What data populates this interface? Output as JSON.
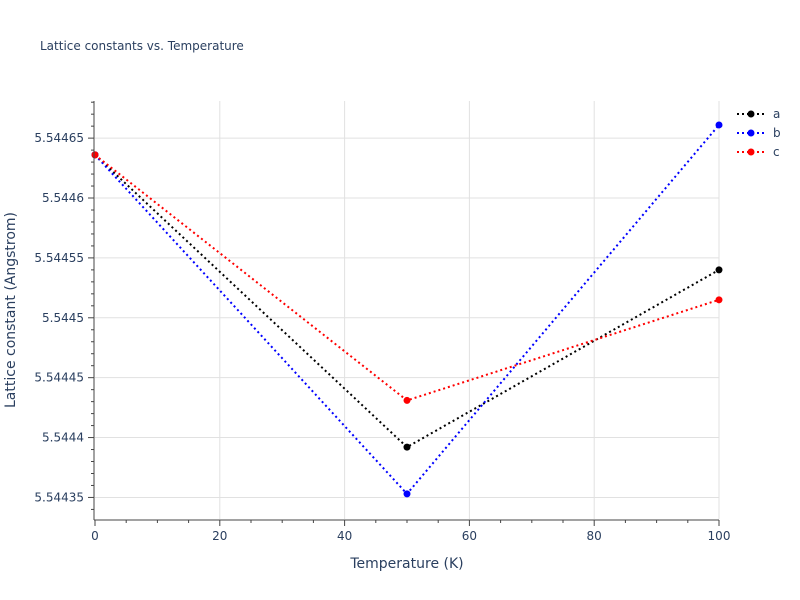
{
  "chart_data": {
    "type": "line",
    "title": "Lattice constants vs. Temperature",
    "xlabel": "Temperature (K)",
    "ylabel": "Lattice constant (Angstrom)",
    "x": [
      0,
      50,
      100
    ],
    "xlim": [
      0,
      100
    ],
    "ylim": [
      5.544332,
      5.544681
    ],
    "x_ticks": [
      0,
      20,
      40,
      60,
      80,
      100
    ],
    "y_ticks": [
      5.54435,
      5.5444,
      5.54445,
      5.5445,
      5.54455,
      5.5446,
      5.54465
    ],
    "x_tick_labels": [
      "0",
      "20",
      "40",
      "60",
      "80",
      "100"
    ],
    "y_tick_labels": [
      "5.54435",
      "5.5444",
      "5.54445",
      "5.5445",
      "5.54455",
      "5.5446",
      "5.54465"
    ],
    "grid": true,
    "legend_position": "top-right",
    "series": [
      {
        "name": "a",
        "color": "#000000",
        "values": [
          5.544636,
          5.544392,
          5.54454
        ]
      },
      {
        "name": "b",
        "color": "#0000ff",
        "values": [
          5.544636,
          5.544353,
          5.544661
        ]
      },
      {
        "name": "c",
        "color": "#ff0000",
        "values": [
          5.544636,
          5.544431,
          5.544515
        ]
      }
    ]
  }
}
